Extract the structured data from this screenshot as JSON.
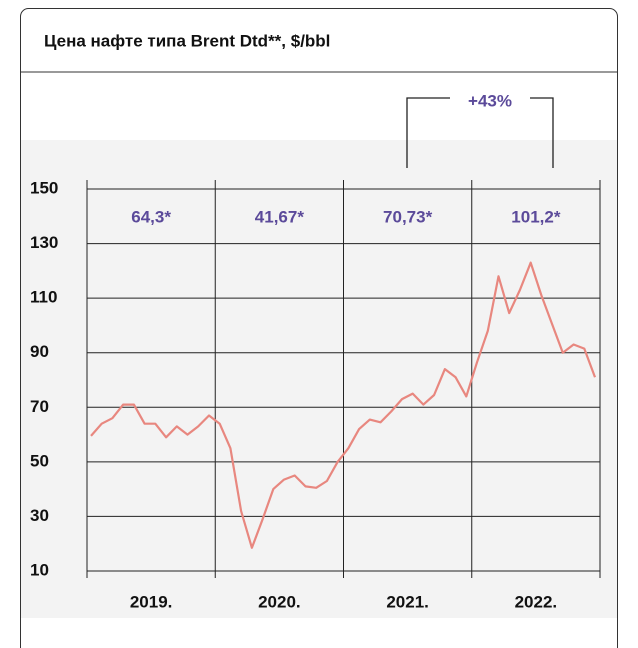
{
  "chart_data": {
    "type": "line",
    "title": "Цена нафте типа Brent Dtd**, $/bbl",
    "year_labels": [
      "2019.",
      "2020.",
      "2021.",
      "2022."
    ],
    "annual_averages": [
      64.3,
      41.67,
      70.73,
      101.2
    ],
    "annual_average_labels": [
      "64,3*",
      "41,67*",
      "70,73*",
      "101,2*"
    ],
    "annotation": "+43%",
    "values": [
      59.5,
      64,
      66,
      71,
      71,
      64,
      64,
      59,
      63,
      60,
      63,
      67,
      64,
      55,
      32,
      18.5,
      29,
      40,
      43.5,
      45,
      41,
      40.5,
      43,
      50,
      55,
      62,
      65.5,
      64.5,
      68.5,
      73,
      75,
      71,
      74.5,
      84,
      81,
      74,
      86.5,
      98,
      118,
      104.5,
      113,
      123,
      111,
      100.5,
      90,
      93,
      91.5,
      81
    ],
    "color": "#e8877f",
    "ylim": [
      10,
      150
    ],
    "yticks": [
      10,
      30,
      50,
      70,
      90,
      110,
      130,
      150
    ],
    "grid": true
  }
}
